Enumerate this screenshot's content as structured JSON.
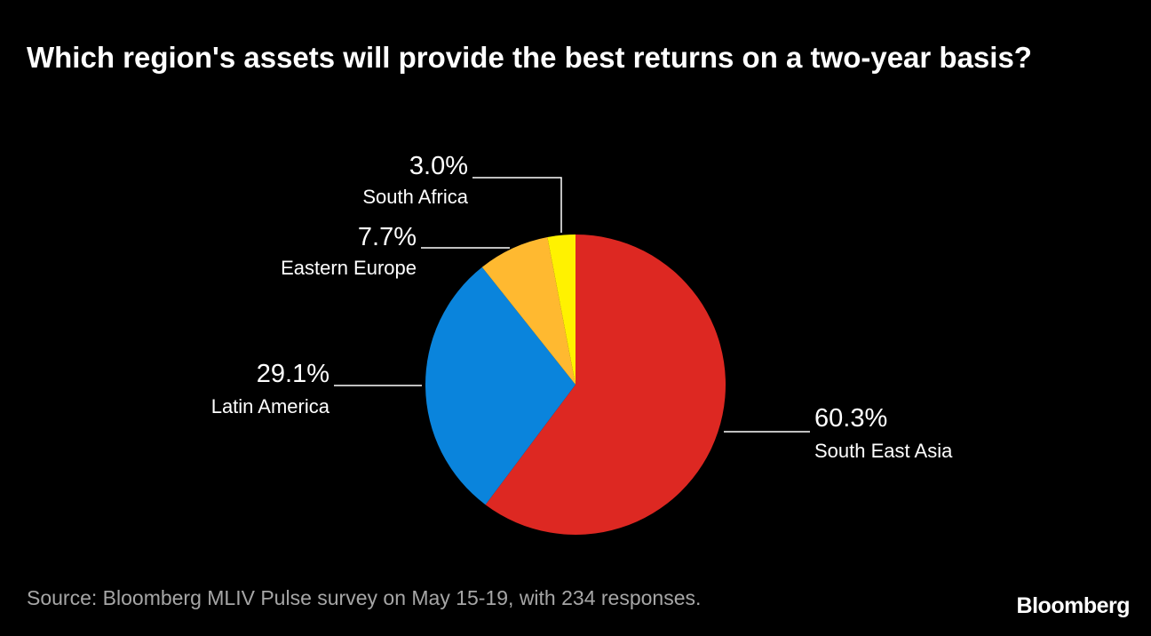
{
  "title": "Which region's assets will provide the best returns on a two-year basis?",
  "source": "Source: Bloomberg MLIV Pulse survey on May 15-19, with 234 responses.",
  "brand": "Bloomberg",
  "chart_data": {
    "type": "pie",
    "title": "Which region's assets will provide the best returns on a two-year basis?",
    "slices": [
      {
        "label": "South East Asia",
        "value": 60.3,
        "value_label": "60.3%",
        "color": "#dd2822"
      },
      {
        "label": "Latin America",
        "value": 29.1,
        "value_label": "29.1%",
        "color": "#0a84dc"
      },
      {
        "label": "Eastern Europe",
        "value": 7.7,
        "value_label": "7.7%",
        "color": "#ffb930"
      },
      {
        "label": "South Africa",
        "value": 3.0,
        "value_label": "3.0%",
        "color": "#fff200"
      }
    ],
    "start": "12 o'clock",
    "direction": "clockwise"
  }
}
